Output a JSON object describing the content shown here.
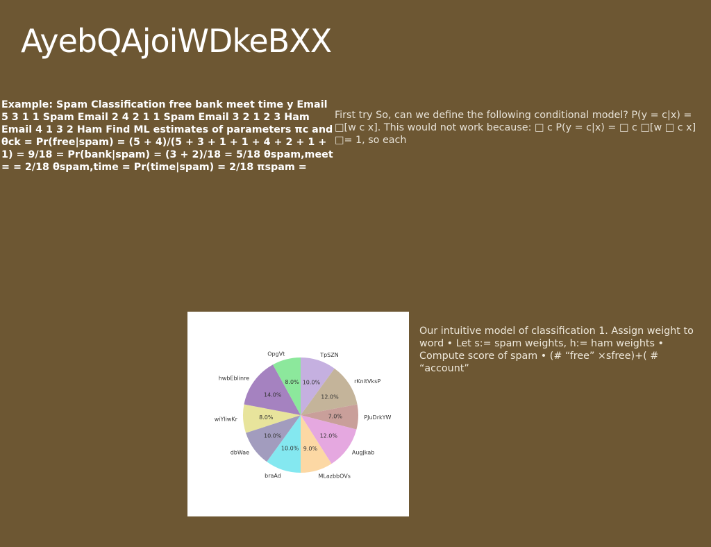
{
  "slide": {
    "title": "AyebQAjoiWDkeBXX",
    "left_text": "Example: Spam Classification free bank meet time y Email 5 3 1 1 Spam Email 2 4 2 1 1 Spam Email 3 2 1 2 3 Ham Email 4 1 3 2 Ham Find ML estimates of parameters πc and θck = Pr(free|spam) = (5 + 4)/(5 + 3 + 1 + 1 + 4 + 2 + 1 + 1) = 9/18 = Pr(bank|spam) = (3 + 2)/18 = 5/18 θspam,meet = = 2/18 θspam,time = Pr(time|spam) = 2/18 πspam =",
    "right_text": "First try So, can we define the following conditional model? P(y = c|x) = □[w c x]. This would not work because: □ c P(y = c|x) = □ c □[w □ c x] □= 1, so each",
    "caption": "Our intuitive model of classification 1. Assign weight to word • Let s:= spam weights, h:= ham weights • Compute score of spam • (# “free” ×sfree)+( # “account”"
  },
  "chart_data": {
    "type": "pie",
    "start_angle": 90,
    "direction": "clockwise",
    "slices": [
      {
        "label": "TpSZN",
        "value": 10.0,
        "pct_label": "10.0%",
        "color": "#c5b0e0"
      },
      {
        "label": "rKnitVksP",
        "value": 12.0,
        "pct_label": "12.0%",
        "color": "#c4b49a"
      },
      {
        "label": "PJuDrkYW",
        "value": 7.0,
        "pct_label": "7.0%",
        "color": "#c99f9a"
      },
      {
        "label": "AugJkab",
        "value": 12.0,
        "pct_label": "12.0%",
        "color": "#e5a8e0"
      },
      {
        "label": "MLazbbOVs",
        "value": 9.0,
        "pct_label": "9.0%",
        "color": "#fcd8a4"
      },
      {
        "label": "braAd",
        "value": 10.0,
        "pct_label": "10.0%",
        "color": "#84e8f0"
      },
      {
        "label": "dbWae",
        "value": 10.0,
        "pct_label": "10.0%",
        "color": "#a29cbe"
      },
      {
        "label": "wiYliwKr",
        "value": 8.0,
        "pct_label": "8.0%",
        "color": "#e8e49c"
      },
      {
        "label": "hwbEblinre",
        "value": 14.0,
        "pct_label": "14.0%",
        "color": "#a582c0"
      },
      {
        "label": "OpgVt",
        "value": 8.0,
        "pct_label": "8.0%",
        "color": "#8ce89c"
      }
    ]
  }
}
